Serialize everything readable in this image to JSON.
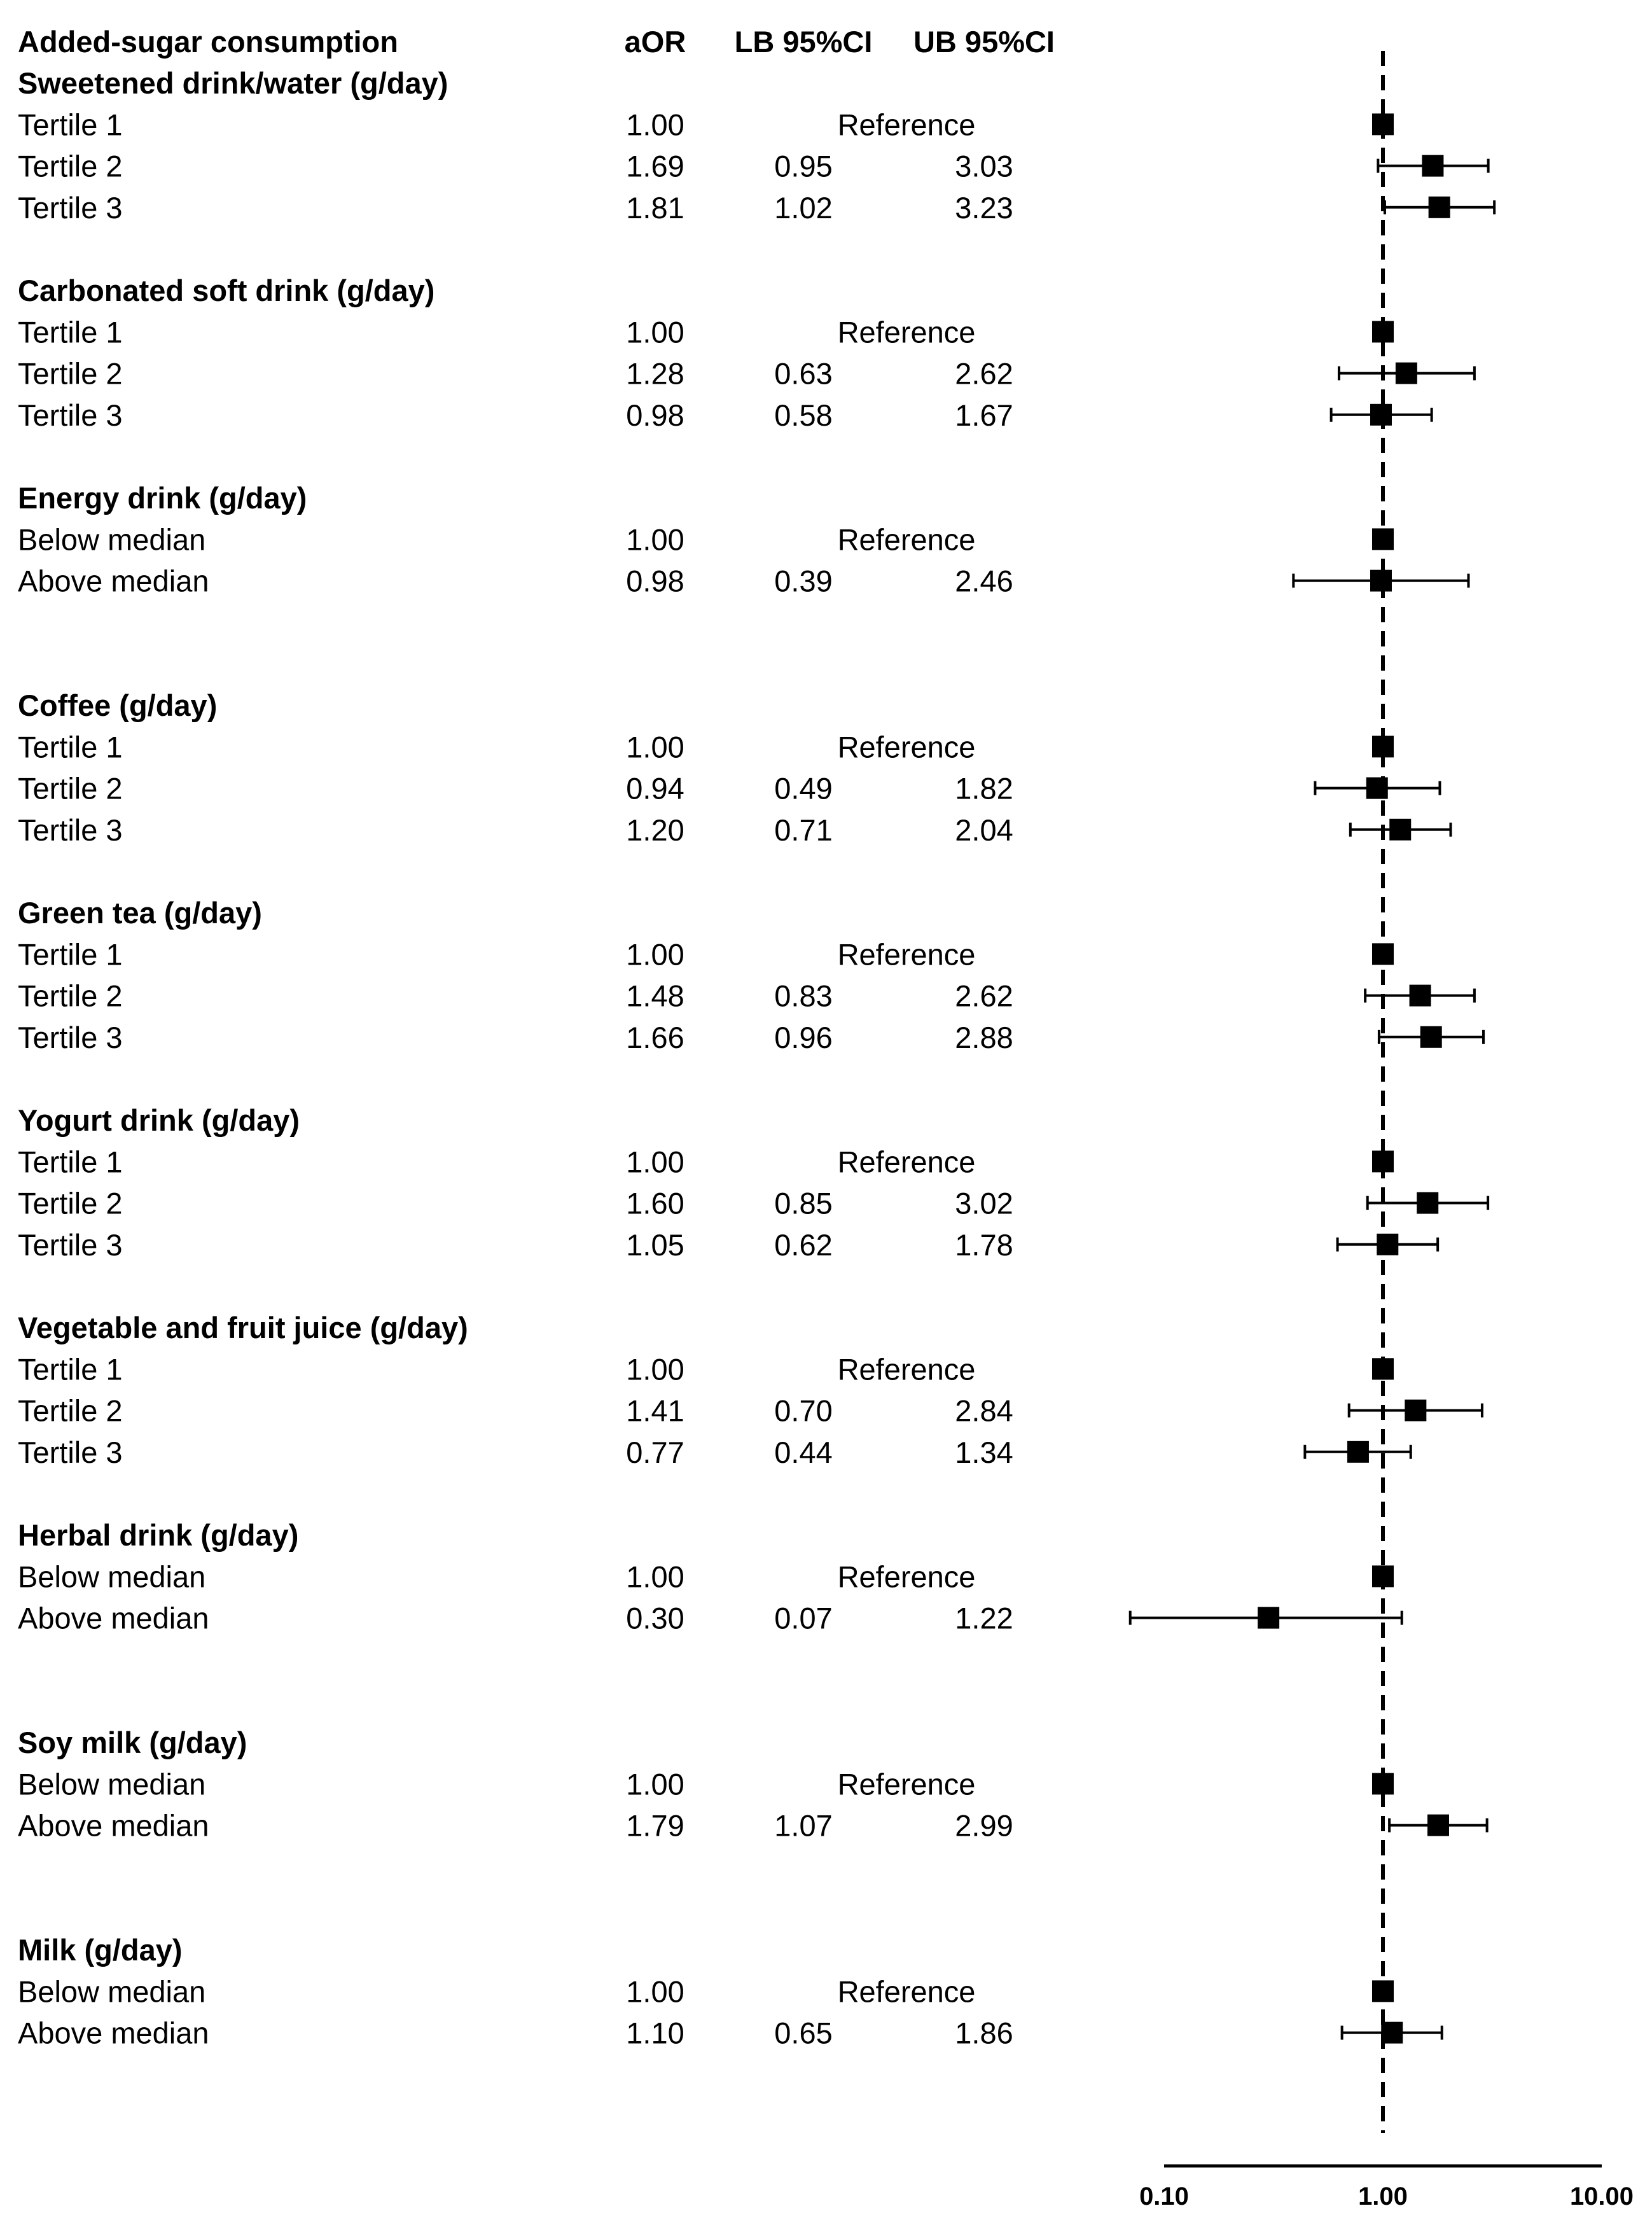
{
  "chart_data": {
    "type": "forest",
    "title": "",
    "xlabel": "",
    "ylabel": "",
    "x_scale": "log",
    "xlim": [
      0.1,
      10
    ],
    "x_ticks": [
      "0.10",
      "1.00",
      "10.00"
    ],
    "reference_line": 1.0,
    "columns": {
      "label": "Added-sugar consumption",
      "aor": "aOR",
      "lb": "LB 95%CI",
      "ub": "UB 95%CI"
    },
    "reference_text": "Reference",
    "groups": [
      {
        "name": "Sweetened drink/water (g/day)",
        "rows": [
          {
            "label": "Tertile 1",
            "aor": 1.0,
            "aor_text": "1.00",
            "ref": true
          },
          {
            "label": "Tertile 2",
            "aor": 1.69,
            "aor_text": "1.69",
            "lb": 0.95,
            "lb_text": "0.95",
            "ub": 3.03,
            "ub_text": "3.03"
          },
          {
            "label": "Tertile 3",
            "aor": 1.81,
            "aor_text": "1.81",
            "lb": 1.02,
            "lb_text": "1.02",
            "ub": 3.23,
            "ub_text": "3.23"
          }
        ]
      },
      {
        "name": "Carbonated soft drink (g/day)",
        "rows": [
          {
            "label": "Tertile 1",
            "aor": 1.0,
            "aor_text": "1.00",
            "ref": true
          },
          {
            "label": "Tertile 2",
            "aor": 1.28,
            "aor_text": "1.28",
            "lb": 0.63,
            "lb_text": "0.63",
            "ub": 2.62,
            "ub_text": "2.62"
          },
          {
            "label": "Tertile 3",
            "aor": 0.98,
            "aor_text": "0.98",
            "lb": 0.58,
            "lb_text": "0.58",
            "ub": 1.67,
            "ub_text": "1.67"
          }
        ]
      },
      {
        "name": "Energy drink (g/day)",
        "rows": [
          {
            "label": "Below median",
            "aor": 1.0,
            "aor_text": "1.00",
            "ref": true
          },
          {
            "label": "Above median",
            "aor": 0.98,
            "aor_text": "0.98",
            "lb": 0.39,
            "lb_text": "0.39",
            "ub": 2.46,
            "ub_text": "2.46"
          }
        ]
      },
      {
        "name": "Coffee (g/day)",
        "rows": [
          {
            "label": "Tertile 1",
            "aor": 1.0,
            "aor_text": "1.00",
            "ref": true
          },
          {
            "label": "Tertile 2",
            "aor": 0.94,
            "aor_text": "0.94",
            "lb": 0.49,
            "lb_text": "0.49",
            "ub": 1.82,
            "ub_text": "1.82"
          },
          {
            "label": "Tertile 3",
            "aor": 1.2,
            "aor_text": "1.20",
            "lb": 0.71,
            "lb_text": "0.71",
            "ub": 2.04,
            "ub_text": "2.04"
          }
        ]
      },
      {
        "name": "Green tea (g/day)",
        "rows": [
          {
            "label": "Tertile 1",
            "aor": 1.0,
            "aor_text": "1.00",
            "ref": true
          },
          {
            "label": "Tertile 2",
            "aor": 1.48,
            "aor_text": "1.48",
            "lb": 0.83,
            "lb_text": "0.83",
            "ub": 2.62,
            "ub_text": "2.62"
          },
          {
            "label": "Tertile 3",
            "aor": 1.66,
            "aor_text": "1.66",
            "lb": 0.96,
            "lb_text": "0.96",
            "ub": 2.88,
            "ub_text": "2.88"
          }
        ]
      },
      {
        "name": "Yogurt drink (g/day)",
        "rows": [
          {
            "label": "Tertile 1",
            "aor": 1.0,
            "aor_text": "1.00",
            "ref": true
          },
          {
            "label": "Tertile 2",
            "aor": 1.6,
            "aor_text": "1.60",
            "lb": 0.85,
            "lb_text": "0.85",
            "ub": 3.02,
            "ub_text": "3.02"
          },
          {
            "label": "Tertile 3",
            "aor": 1.05,
            "aor_text": "1.05",
            "lb": 0.62,
            "lb_text": "0.62",
            "ub": 1.78,
            "ub_text": "1.78"
          }
        ]
      },
      {
        "name": "Vegetable and fruit juice (g/day)",
        "rows": [
          {
            "label": "Tertile 1",
            "aor": 1.0,
            "aor_text": "1.00",
            "ref": true
          },
          {
            "label": "Tertile 2",
            "aor": 1.41,
            "aor_text": "1.41",
            "lb": 0.7,
            "lb_text": "0.70",
            "ub": 2.84,
            "ub_text": "2.84"
          },
          {
            "label": "Tertile 3",
            "aor": 0.77,
            "aor_text": "0.77",
            "lb": 0.44,
            "lb_text": "0.44",
            "ub": 1.34,
            "ub_text": "1.34"
          }
        ]
      },
      {
        "name": "Herbal drink (g/day)",
        "rows": [
          {
            "label": "Below median",
            "aor": 1.0,
            "aor_text": "1.00",
            "ref": true
          },
          {
            "label": "Above median",
            "aor": 0.3,
            "aor_text": "0.30",
            "lb": 0.07,
            "lb_text": "0.07",
            "ub": 1.22,
            "ub_text": "1.22"
          }
        ]
      },
      {
        "name": "Soy milk (g/day)",
        "rows": [
          {
            "label": "Below median",
            "aor": 1.0,
            "aor_text": "1.00",
            "ref": true
          },
          {
            "label": "Above median",
            "aor": 1.79,
            "aor_text": "1.79",
            "lb": 1.07,
            "lb_text": "1.07",
            "ub": 2.99,
            "ub_text": "2.99"
          }
        ]
      },
      {
        "name": "Milk (g/day)",
        "rows": [
          {
            "label": "Below median",
            "aor": 1.0,
            "aor_text": "1.00",
            "ref": true
          },
          {
            "label": "Above median",
            "aor": 1.1,
            "aor_text": "1.10",
            "lb": 0.65,
            "lb_text": "0.65",
            "ub": 1.86,
            "ub_text": "1.86"
          }
        ]
      }
    ]
  }
}
